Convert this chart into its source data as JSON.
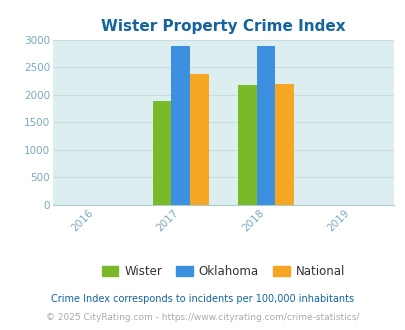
{
  "title": "Wister Property Crime Index",
  "title_color": "#1464a0",
  "years": [
    2017,
    2018
  ],
  "wister": [
    1875,
    2175
  ],
  "oklahoma": [
    2875,
    2875
  ],
  "national": [
    2375,
    2200
  ],
  "bar_colors": {
    "wister": "#7aba2a",
    "oklahoma": "#3d8fe0",
    "national": "#f5a623"
  },
  "xlim": [
    2015.5,
    2019.5
  ],
  "ylim": [
    0,
    3000
  ],
  "yticks": [
    0,
    500,
    1000,
    1500,
    2000,
    2500,
    3000
  ],
  "xticks": [
    2016,
    2017,
    2018,
    2019
  ],
  "bar_width": 0.22,
  "bg_color": "#ddeef0",
  "legend_labels": [
    "Wister",
    "Oklahoma",
    "National"
  ],
  "footnote1": "Crime Index corresponds to incidents per 100,000 inhabitants",
  "footnote2": "© 2025 CityRating.com - https://www.cityrating.com/crime-statistics/",
  "footnote1_color": "#1464a0",
  "footnote2_color": "#aaaaaa",
  "grid_color": "#c8dde0",
  "tick_label_color": "#7aaabb",
  "axis_color": "#aacccc"
}
